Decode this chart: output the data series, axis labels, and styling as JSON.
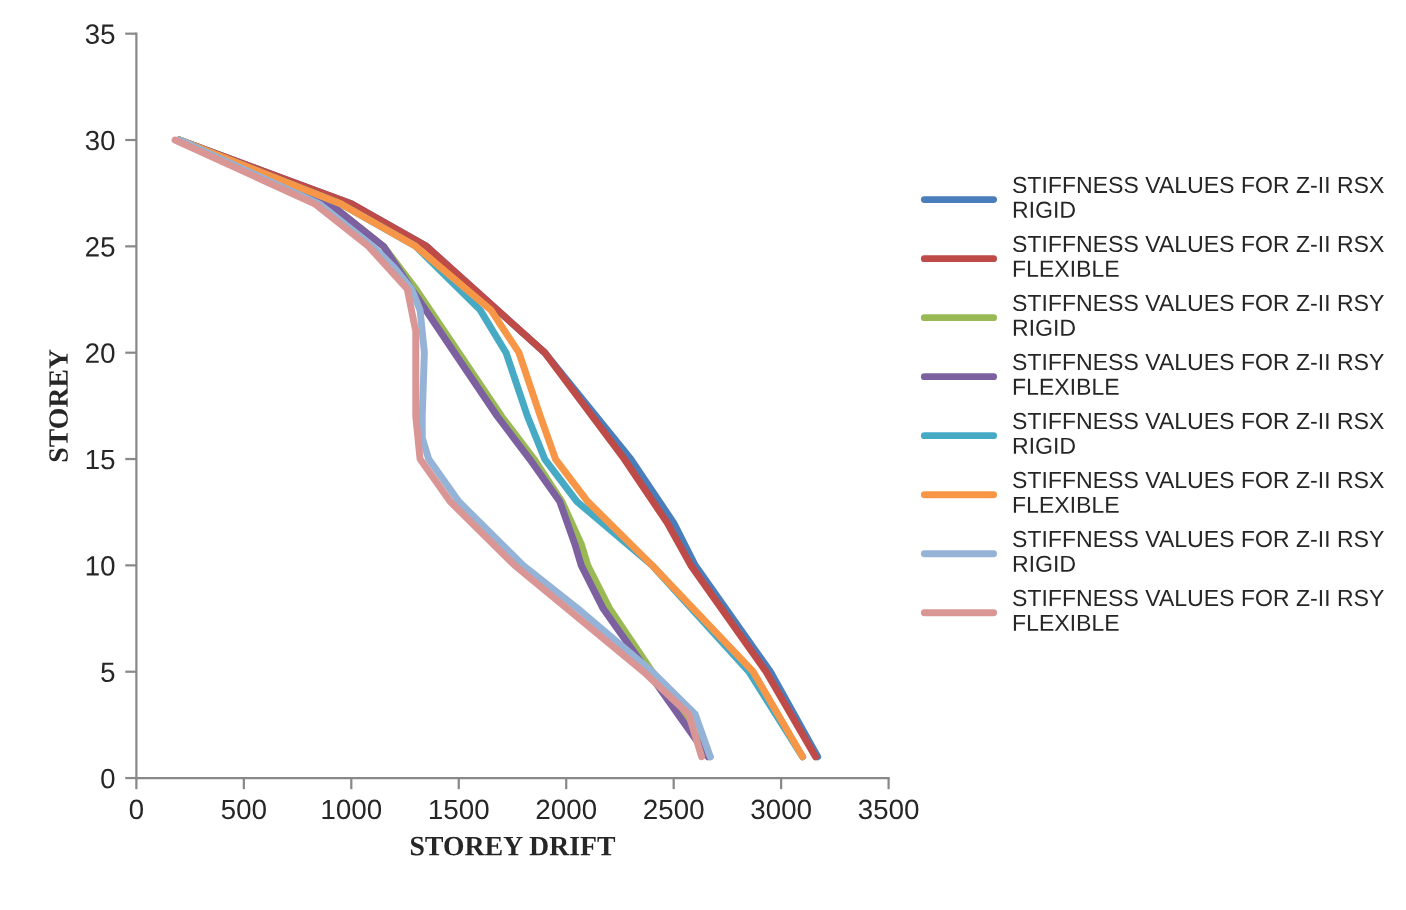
{
  "chart_data": {
    "type": "line",
    "xlabel": "STOREY DRIFT",
    "ylabel": "STOREY",
    "xlim": [
      0,
      3500
    ],
    "xticks": [
      0,
      500,
      1000,
      1500,
      2000,
      2500,
      3000,
      3500
    ],
    "ylim": [
      0,
      35
    ],
    "yticks": [
      0,
      5,
      10,
      15,
      20,
      25,
      30,
      35
    ],
    "grid": false,
    "legend": "right",
    "marker": "none",
    "line_style": "solid",
    "series": [
      {
        "name": "STIFFNESS VALUES FOR Z-II RSX RIGID",
        "color": "#4a7ebb",
        "x": [
          200,
          1000,
          1350,
          1900,
          2300,
          2500,
          2600,
          2950,
          3170
        ],
        "values": [
          30,
          27,
          25,
          20,
          15,
          12,
          10,
          5,
          1
        ]
      },
      {
        "name": "STIFFNESS VALUES FOR Z-II RSX FLEXIBLE",
        "color": "#be4b48",
        "x": [
          200,
          1000,
          1350,
          1900,
          2270,
          2470,
          2580,
          2930,
          3160
        ],
        "values": [
          30,
          27,
          25,
          20,
          15,
          12,
          10,
          5,
          1
        ]
      },
      {
        "name": "STIFFNESS VALUES FOR Z-II RSY RIGID",
        "color": "#98b954",
        "x": [
          200,
          900,
          1150,
          1300,
          1500,
          1700,
          1850,
          1980,
          2070,
          2100,
          2200,
          2400,
          2670
        ],
        "values": [
          30,
          27,
          25,
          23,
          20,
          17,
          15,
          13,
          11,
          10,
          8,
          5,
          1
        ]
      },
      {
        "name": "STIFFNESS VALUES FOR Z-II RSY FLEXIBLE",
        "color": "#7d60a0",
        "x": [
          200,
          900,
          1150,
          1280,
          1480,
          1680,
          1830,
          1970,
          2040,
          2070,
          2170,
          2380,
          2660
        ],
        "values": [
          30,
          27,
          25,
          23,
          20,
          17,
          15,
          13,
          11,
          10,
          8,
          5,
          1
        ]
      },
      {
        "name": "STIFFNESS VALUES FOR Z-II RSX RIGID",
        "color": "#46aac5",
        "x": [
          200,
          950,
          1300,
          1600,
          1720,
          1820,
          1900,
          2050,
          2400,
          2850,
          3100
        ],
        "values": [
          30,
          27,
          25,
          22,
          20,
          17,
          15,
          13,
          10,
          5,
          1
        ]
      },
      {
        "name": "STIFFNESS VALUES FOR Z-II RSX FLEXIBLE",
        "color": "#f79646",
        "x": [
          200,
          950,
          1300,
          1650,
          1780,
          1880,
          1950,
          2100,
          2400,
          2870,
          3100
        ],
        "values": [
          30,
          27,
          25,
          22,
          20,
          17,
          15,
          13,
          10,
          5,
          1
        ]
      },
      {
        "name": "STIFFNESS VALUES FOR Z-II RSY RIGID",
        "color": "#95b3d7",
        "x": [
          200,
          850,
          1100,
          1200,
          1280,
          1320,
          1340,
          1330,
          1330,
          1360,
          1500,
          1800,
          2050,
          2400,
          2600,
          2670
        ],
        "values": [
          30,
          27,
          25,
          24,
          23,
          22,
          20,
          17,
          16,
          15,
          13,
          10,
          8,
          5,
          3,
          1
        ]
      },
      {
        "name": "STIFFNESS VALUES FOR Z-II RSY FLEXIBLE",
        "color": "#d99694",
        "x": [
          180,
          830,
          1080,
          1260,
          1300,
          1300,
          1320,
          1460,
          1760,
          2000,
          2360,
          2570,
          2630
        ],
        "values": [
          30,
          27,
          25,
          23,
          21,
          17,
          15,
          13,
          10,
          8,
          5,
          3,
          1
        ]
      }
    ]
  }
}
